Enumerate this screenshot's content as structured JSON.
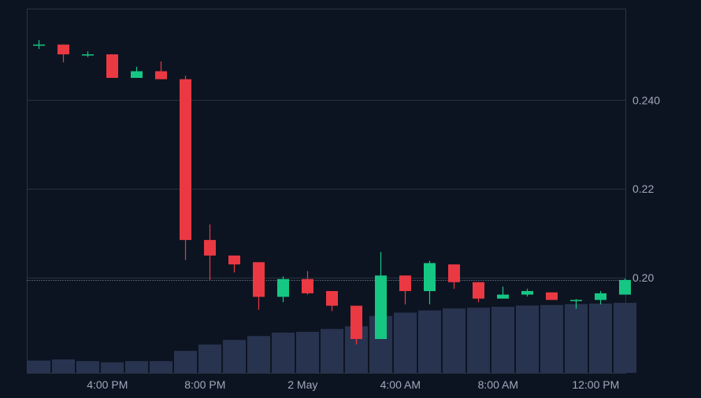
{
  "colors": {
    "background": "#0d1421",
    "grid": "#27323f",
    "frame": "#2a3644",
    "up": "#16c784",
    "down": "#ea3943",
    "volume": "#283350",
    "text": "#a1a7bb",
    "reference_line": "#8a94a6"
  },
  "chart_data": {
    "type": "candlestick",
    "title": "",
    "xlabel": "",
    "ylabel": "",
    "ylim": [
      0.1785,
      0.2605
    ],
    "y_ticks": [
      {
        "value": 0.24,
        "label": "0.240"
      },
      {
        "value": 0.22,
        "label": "0.22"
      },
      {
        "value": 0.2,
        "label": "0.20"
      }
    ],
    "x_ticks": [
      {
        "index": 2.8,
        "label": "4:00 PM"
      },
      {
        "index": 6.8,
        "label": "8:00 PM"
      },
      {
        "index": 10.8,
        "label": "2 May"
      },
      {
        "index": 14.8,
        "label": "4:00 AM"
      },
      {
        "index": 18.8,
        "label": "8:00 AM"
      },
      {
        "index": 22.8,
        "label": "12:00 PM"
      }
    ],
    "reference_price": 0.1995,
    "grid": true,
    "candles": [
      {
        "open": 0.2525,
        "high": 0.2535,
        "low": 0.2515,
        "close": 0.2525
      },
      {
        "open": 0.2525,
        "high": 0.2525,
        "low": 0.2485,
        "close": 0.2503
      },
      {
        "open": 0.2503,
        "high": 0.251,
        "low": 0.2497,
        "close": 0.2503
      },
      {
        "open": 0.2503,
        "high": 0.2503,
        "low": 0.245,
        "close": 0.245
      },
      {
        "open": 0.245,
        "high": 0.2475,
        "low": 0.245,
        "close": 0.2465
      },
      {
        "open": 0.2465,
        "high": 0.2487,
        "low": 0.2447,
        "close": 0.2447
      },
      {
        "open": 0.2447,
        "high": 0.2455,
        "low": 0.204,
        "close": 0.2085
      },
      {
        "open": 0.2085,
        "high": 0.212,
        "low": 0.1995,
        "close": 0.205
      },
      {
        "open": 0.205,
        "high": 0.205,
        "low": 0.2012,
        "close": 0.203
      },
      {
        "open": 0.2035,
        "high": 0.2035,
        "low": 0.1928,
        "close": 0.1957
      },
      {
        "open": 0.1957,
        "high": 0.2003,
        "low": 0.1945,
        "close": 0.1997
      },
      {
        "open": 0.1997,
        "high": 0.2015,
        "low": 0.1962,
        "close": 0.1965
      },
      {
        "open": 0.197,
        "high": 0.197,
        "low": 0.1925,
        "close": 0.1937
      },
      {
        "open": 0.1937,
        "high": 0.1937,
        "low": 0.185,
        "close": 0.1862
      },
      {
        "open": 0.1862,
        "high": 0.2058,
        "low": 0.1862,
        "close": 0.2005
      },
      {
        "open": 0.2005,
        "high": 0.2005,
        "low": 0.194,
        "close": 0.197
      },
      {
        "open": 0.197,
        "high": 0.2038,
        "low": 0.194,
        "close": 0.2033
      },
      {
        "open": 0.203,
        "high": 0.203,
        "low": 0.1975,
        "close": 0.199
      },
      {
        "open": 0.199,
        "high": 0.199,
        "low": 0.1945,
        "close": 0.1953
      },
      {
        "open": 0.1953,
        "high": 0.198,
        "low": 0.1953,
        "close": 0.1962
      },
      {
        "open": 0.1962,
        "high": 0.1975,
        "low": 0.1958,
        "close": 0.197
      },
      {
        "open": 0.1967,
        "high": 0.1967,
        "low": 0.195,
        "close": 0.195
      },
      {
        "open": 0.195,
        "high": 0.1952,
        "low": 0.193,
        "close": 0.195
      },
      {
        "open": 0.195,
        "high": 0.197,
        "low": 0.194,
        "close": 0.1965
      },
      {
        "open": 0.1962,
        "high": 0.1998,
        "low": 0.1962,
        "close": 0.1995
      }
    ],
    "volume": [
      0.05,
      0.055,
      0.048,
      0.043,
      0.048,
      0.048,
      0.09,
      0.116,
      0.135,
      0.151,
      0.165,
      0.168,
      0.18,
      0.191,
      0.233,
      0.247,
      0.256,
      0.264,
      0.267,
      0.271,
      0.276,
      0.278,
      0.282,
      0.284,
      0.287
    ]
  }
}
